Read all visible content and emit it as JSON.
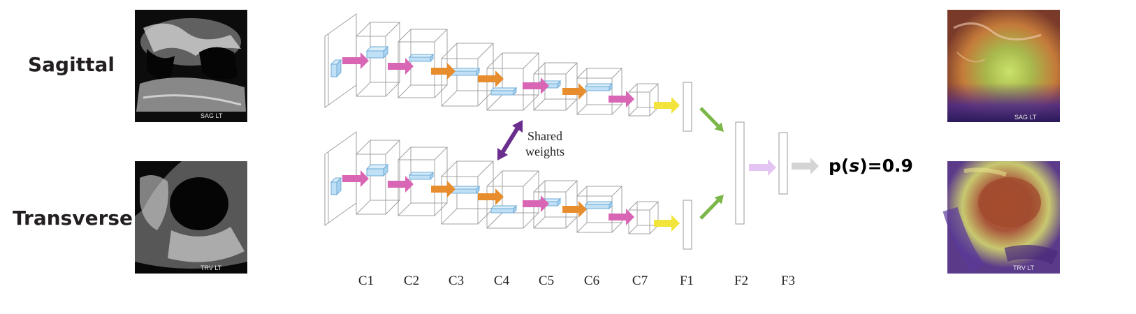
{
  "rows": {
    "sagittal_label": "Sagittal",
    "transverse_label": "Transverse"
  },
  "image_tags": {
    "sagittal": "SAG  LT",
    "transverse": "TRV  LT"
  },
  "shared_weights": {
    "line1": "Shared",
    "line2": "weights"
  },
  "layers": [
    "C1",
    "C2",
    "C3",
    "C4",
    "C5",
    "C6",
    "C7",
    "F1",
    "F2",
    "F3"
  ],
  "output": {
    "prefix": "p(",
    "var": "s",
    "suffix": ")=0.9"
  },
  "colors": {
    "magenta_arrow": "#d966b5",
    "orange_arrow": "#e88d2d",
    "yellow_arrow": "#f2e43a",
    "green_arrow": "#7ab648",
    "lavender_arrow": "#e3c4f2",
    "gray_arrow": "#d4d4d4",
    "shared_arrow": "#6a2e8e",
    "kernel_fill": "#bfe0f5",
    "kernel_stroke": "#6aa8d6",
    "box_stroke": "#9a9a9a"
  }
}
